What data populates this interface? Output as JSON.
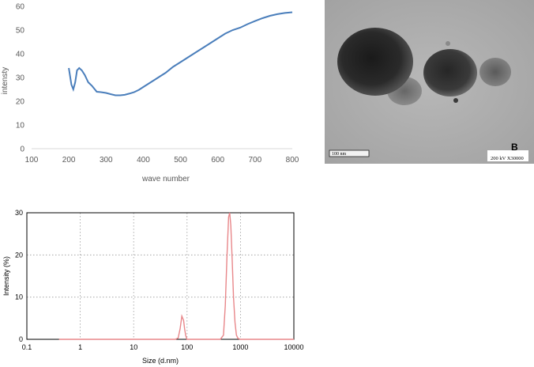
{
  "chart_data": [
    {
      "type": "line",
      "xlabel": "wave number",
      "ylabel": "intensty",
      "xlim": [
        100,
        800
      ],
      "ylim": [
        0,
        60
      ],
      "xticks": [
        "100",
        "200",
        "300",
        "400",
        "500",
        "600",
        "700",
        "800"
      ],
      "yticks": [
        "0",
        "10",
        "20",
        "30",
        "40",
        "50",
        "60"
      ],
      "grid": false,
      "color": "#4a7ebb",
      "x": [
        200,
        207,
        212,
        217,
        222,
        228,
        235,
        243,
        252,
        262,
        275,
        288,
        300,
        312,
        325,
        338,
        350,
        362,
        375,
        388,
        400,
        415,
        430,
        445,
        460,
        480,
        500,
        520,
        540,
        560,
        580,
        600,
        620,
        640,
        660,
        680,
        700,
        720,
        740,
        760,
        780,
        800
      ],
      "y": [
        34,
        27,
        25,
        28,
        33,
        34,
        33,
        31,
        28,
        26.5,
        24,
        23.8,
        23.5,
        23,
        22.5,
        22.5,
        22.7,
        23.2,
        23.8,
        24.8,
        26,
        27.5,
        29,
        30.5,
        32,
        34.5,
        36.5,
        38.5,
        40.5,
        42.5,
        44.5,
        46.5,
        48.5,
        50,
        51,
        52.5,
        53.8,
        55,
        56,
        56.7,
        57.2,
        57.5
      ]
    },
    {
      "type": "line",
      "xlabel": "Size (d.nm)",
      "ylabel": "Intensity (%)",
      "xscale": "log",
      "xlim": [
        0.1,
        10000
      ],
      "ylim": [
        0,
        30
      ],
      "xticks": [
        "0.1",
        "1",
        "10",
        "100",
        "1000",
        "10000"
      ],
      "yticks": [
        "0",
        "10",
        "20",
        "30"
      ],
      "grid": true,
      "color": "#e8878a",
      "x": [
        0.4,
        50,
        60,
        68,
        74,
        80,
        86,
        90,
        94,
        98,
        100,
        300,
        420,
        480,
        520,
        560,
        600,
        630,
        660,
        700,
        740,
        790,
        840,
        900,
        1000,
        10000
      ],
      "y": [
        0,
        0,
        0,
        0.3,
        2.5,
        5.5,
        4.5,
        2.5,
        1,
        0.2,
        0,
        0,
        0,
        1,
        8,
        20,
        29,
        30,
        27,
        19,
        10,
        4,
        1,
        0.2,
        0,
        0
      ]
    }
  ],
  "micrograph": {
    "label": "B",
    "scale_text": "100  nm",
    "info_text": "200 kV  X30000"
  }
}
